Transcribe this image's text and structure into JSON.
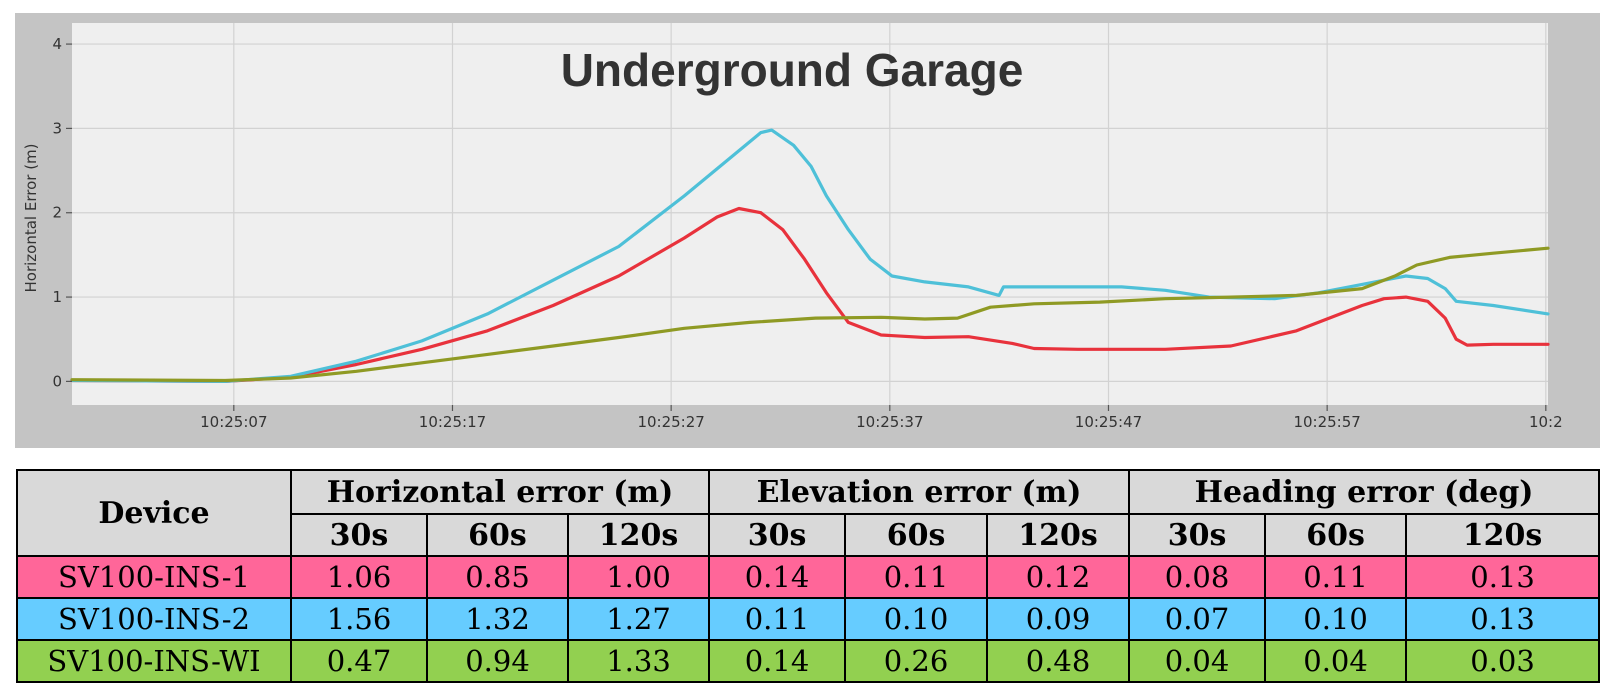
{
  "chart_data": {
    "type": "line",
    "title": "Underground Garage",
    "ylabel": "Horizontal Error (m)",
    "xlabel": "",
    "ylim": [
      -0.28,
      4.25
    ],
    "xlim": [
      0,
      67.5
    ],
    "y_ticks": [
      0,
      1,
      2,
      3,
      4
    ],
    "x_ticks": [
      {
        "t": 7.4,
        "label": "10:25:07"
      },
      {
        "t": 17.4,
        "label": "10:25:17"
      },
      {
        "t": 27.4,
        "label": "10:25:27"
      },
      {
        "t": 37.4,
        "label": "10:25:37"
      },
      {
        "t": 47.4,
        "label": "10:25:47"
      },
      {
        "t": 57.4,
        "label": "10:25:57"
      },
      {
        "t": 67.4,
        "label": "10:2"
      }
    ],
    "grid": true,
    "series": [
      {
        "color": "#e8323c",
        "points": [
          [
            0,
            0.01
          ],
          [
            7,
            0.0
          ],
          [
            10,
            0.05
          ],
          [
            13,
            0.2
          ],
          [
            16,
            0.38
          ],
          [
            19,
            0.6
          ],
          [
            22,
            0.9
          ],
          [
            25,
            1.25
          ],
          [
            28,
            1.7
          ],
          [
            29.5,
            1.95
          ],
          [
            30.5,
            2.05
          ],
          [
            31.5,
            2.0
          ],
          [
            32.5,
            1.8
          ],
          [
            33.5,
            1.45
          ],
          [
            34.5,
            1.05
          ],
          [
            35.5,
            0.7
          ],
          [
            37,
            0.55
          ],
          [
            39,
            0.52
          ],
          [
            41,
            0.53
          ],
          [
            43,
            0.45
          ],
          [
            44,
            0.39
          ],
          [
            46,
            0.38
          ],
          [
            50,
            0.38
          ],
          [
            53,
            0.42
          ],
          [
            56,
            0.6
          ],
          [
            58,
            0.8
          ],
          [
            59,
            0.9
          ],
          [
            60,
            0.98
          ],
          [
            61,
            1.0
          ],
          [
            62,
            0.95
          ],
          [
            62.8,
            0.75
          ],
          [
            63.3,
            0.5
          ],
          [
            63.8,
            0.43
          ],
          [
            65,
            0.44
          ],
          [
            67.5,
            0.44
          ]
        ]
      },
      {
        "color": "#4ec0d8",
        "points": [
          [
            0,
            0.01
          ],
          [
            7,
            0.0
          ],
          [
            10,
            0.06
          ],
          [
            13,
            0.24
          ],
          [
            16,
            0.48
          ],
          [
            19,
            0.8
          ],
          [
            22,
            1.2
          ],
          [
            25,
            1.6
          ],
          [
            28,
            2.2
          ],
          [
            31.5,
            2.95
          ],
          [
            32,
            2.98
          ],
          [
            33,
            2.8
          ],
          [
            33.8,
            2.55
          ],
          [
            34.5,
            2.2
          ],
          [
            35.5,
            1.8
          ],
          [
            36.5,
            1.45
          ],
          [
            37.5,
            1.25
          ],
          [
            39,
            1.18
          ],
          [
            41,
            1.12
          ],
          [
            42.4,
            1.02
          ],
          [
            42.6,
            1.12
          ],
          [
            45,
            1.12
          ],
          [
            48,
            1.12
          ],
          [
            50,
            1.08
          ],
          [
            52,
            1.0
          ],
          [
            55,
            0.98
          ],
          [
            57,
            1.05
          ],
          [
            59,
            1.15
          ],
          [
            61,
            1.25
          ],
          [
            62,
            1.22
          ],
          [
            62.8,
            1.1
          ],
          [
            63.3,
            0.95
          ],
          [
            65,
            0.9
          ],
          [
            67.5,
            0.8
          ]
        ]
      },
      {
        "color": "#8f9a24",
        "points": [
          [
            0,
            0.02
          ],
          [
            7,
            0.01
          ],
          [
            10,
            0.04
          ],
          [
            13,
            0.12
          ],
          [
            16,
            0.22
          ],
          [
            19,
            0.32
          ],
          [
            22,
            0.42
          ],
          [
            25,
            0.52
          ],
          [
            28,
            0.63
          ],
          [
            31,
            0.7
          ],
          [
            34,
            0.75
          ],
          [
            37,
            0.76
          ],
          [
            39,
            0.74
          ],
          [
            40.5,
            0.75
          ],
          [
            42,
            0.88
          ],
          [
            44,
            0.92
          ],
          [
            47,
            0.94
          ],
          [
            50,
            0.98
          ],
          [
            53,
            1.0
          ],
          [
            56,
            1.02
          ],
          [
            59,
            1.1
          ],
          [
            60.5,
            1.25
          ],
          [
            61.5,
            1.38
          ],
          [
            63,
            1.47
          ],
          [
            65,
            1.52
          ],
          [
            67.5,
            1.58
          ]
        ]
      }
    ]
  },
  "table": {
    "device_header": "Device",
    "groups": [
      "Horizontal error (m)",
      "Elevation error (m)",
      "Heading error (deg)"
    ],
    "sub_headers": [
      "30s",
      "60s",
      "120s",
      "30s",
      "60s",
      "120s",
      "30s",
      "60s",
      "120s"
    ],
    "rows": [
      {
        "device": "SV100-INS-1",
        "color": "#ff6699",
        "values": [
          "1.06",
          "0.85",
          "1.00",
          "0.14",
          "0.11",
          "0.12",
          "0.08",
          "0.11",
          "0.13"
        ]
      },
      {
        "device": "SV100-INS-2",
        "color": "#66ccff",
        "values": [
          "1.56",
          "1.32",
          "1.27",
          "0.11",
          "0.10",
          "0.09",
          "0.07",
          "0.10",
          "0.13"
        ]
      },
      {
        "device": "SV100-INS-WI",
        "color": "#92d050",
        "values": [
          "0.47",
          "0.94",
          "1.33",
          "0.14",
          "0.26",
          "0.48",
          "0.04",
          "0.04",
          "0.03"
        ]
      }
    ]
  }
}
